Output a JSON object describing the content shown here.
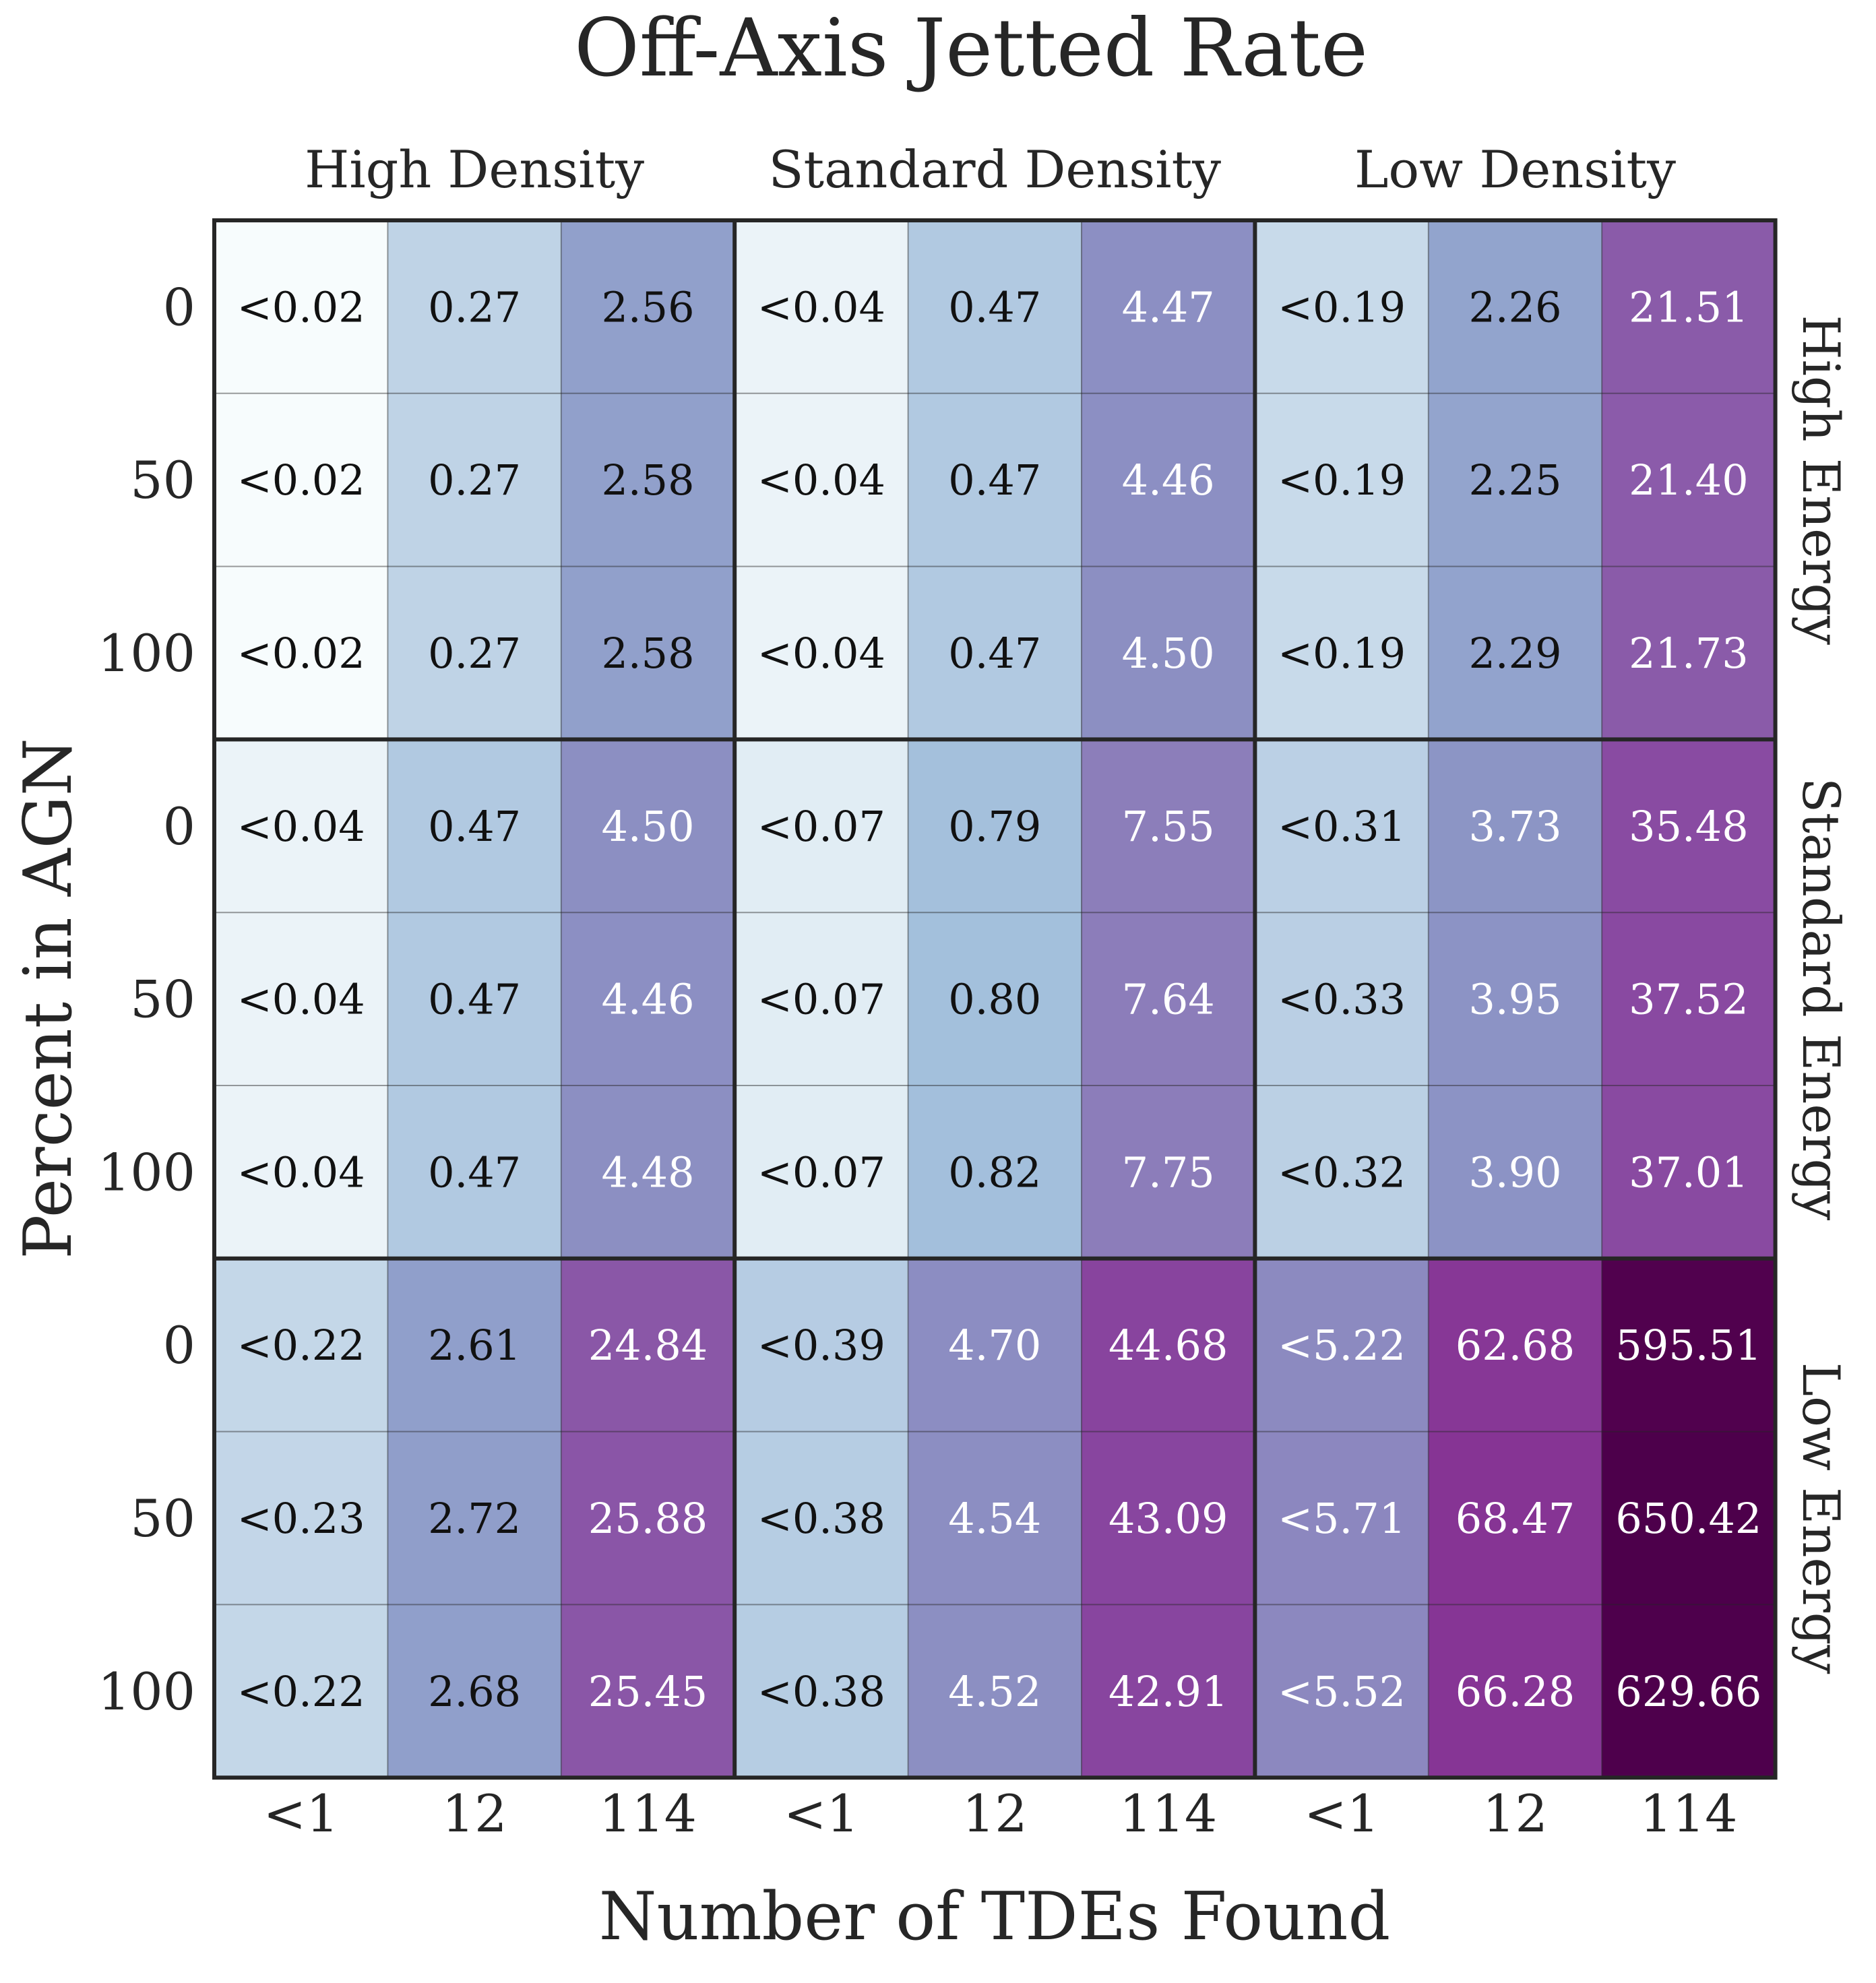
{
  "chart_data": {
    "type": "heatmap",
    "title": "Off-Axis Jetted Rate",
    "xlabel": "Number of TDEs Found",
    "ylabel": "Percent in AGN",
    "column_groups": [
      "High Density",
      "Standard Density",
      "Low Density"
    ],
    "row_groups": [
      "High Energy",
      "Standard Energy",
      "Low Energy"
    ],
    "col_tick_labels": [
      "<1",
      "12",
      "114",
      "<1",
      "12",
      "114",
      "<1",
      "12",
      "114"
    ],
    "row_tick_labels": [
      "0",
      "50",
      "100",
      "0",
      "50",
      "100",
      "0",
      "50",
      "100"
    ],
    "cells": [
      [
        "<0.02",
        "0.27",
        "2.56",
        "<0.04",
        "0.47",
        "4.47",
        "<0.19",
        "2.26",
        "21.51"
      ],
      [
        "<0.02",
        "0.27",
        "2.58",
        "<0.04",
        "0.47",
        "4.46",
        "<0.19",
        "2.25",
        "21.40"
      ],
      [
        "<0.02",
        "0.27",
        "2.58",
        "<0.04",
        "0.47",
        "4.50",
        "<0.19",
        "2.29",
        "21.73"
      ],
      [
        "<0.04",
        "0.47",
        "4.50",
        "<0.07",
        "0.79",
        "7.55",
        "<0.31",
        "3.73",
        "35.48"
      ],
      [
        "<0.04",
        "0.47",
        "4.46",
        "<0.07",
        "0.80",
        "7.64",
        "<0.33",
        "3.95",
        "37.52"
      ],
      [
        "<0.04",
        "0.47",
        "4.48",
        "<0.07",
        "0.82",
        "7.75",
        "<0.32",
        "3.90",
        "37.01"
      ],
      [
        "<0.22",
        "2.61",
        "24.84",
        "<0.39",
        "4.70",
        "44.68",
        "<5.22",
        "62.68",
        "595.51"
      ],
      [
        "<0.23",
        "2.72",
        "25.88",
        "<0.38",
        "4.54",
        "43.09",
        "<5.71",
        "68.47",
        "650.42"
      ],
      [
        "<0.22",
        "2.68",
        "25.45",
        "<0.38",
        "4.52",
        "42.91",
        "<5.52",
        "66.28",
        "629.66"
      ]
    ],
    "colormap": "BuPu",
    "color_scale": "log",
    "text_colors": {
      "dark": "#111111",
      "light": "#ffffff"
    },
    "grid_color": "#262626"
  }
}
